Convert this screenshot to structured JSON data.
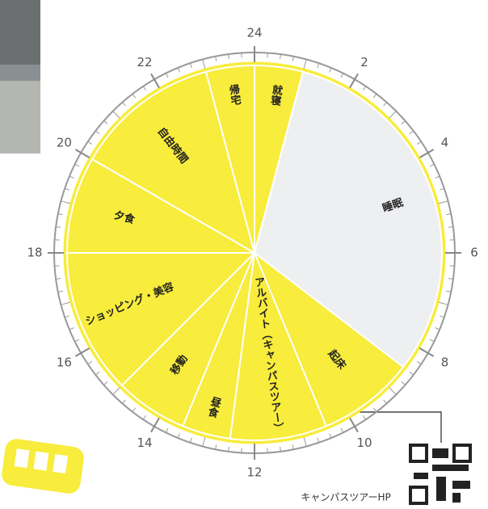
{
  "chart_data": {
    "type": "pie",
    "categories": [
      "就寝",
      "睡眠",
      "起床",
      "アルバイト（キャンパスツアー）",
      "昼食",
      "移動",
      "ショッピング・美容",
      "夕食",
      "自由時間",
      "帰宅"
    ],
    "values": [
      1,
      7.5,
      2,
      2,
      1,
      1.5,
      3,
      2,
      3,
      1
    ],
    "colors": [
      "#f8ec3c",
      "#eeeff1",
      "#f8ec3c",
      "#f8ec3c",
      "#f8ec3c",
      "#f8ec3c",
      "#f8ec3c",
      "#f8ec3c",
      "#f8ec3c",
      "#f8ec3c"
    ],
    "xlim": [
      0,
      24
    ],
    "xticks": [
      24,
      2,
      4,
      6,
      8,
      10,
      12,
      14,
      16,
      18,
      20,
      22
    ],
    "annotation": "キャンパスツアーHP"
  }
}
